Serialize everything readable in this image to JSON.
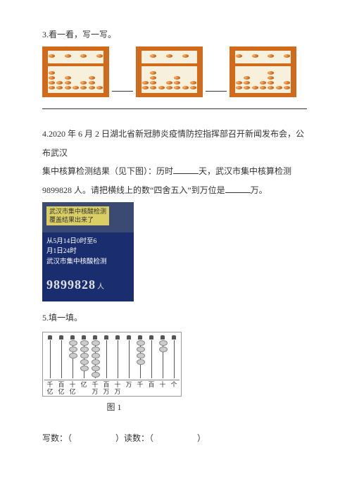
{
  "q3": {
    "title": "3.看一看，写一写。"
  },
  "q4": {
    "text_a": "4.2020 年 6 月 2 日湖北省新冠肺炎疫情防控指挥部召开新闻发布会，公布武汉",
    "text_b": "集中核算检测结果（见下图）：历时",
    "text_c": "天，武汉市集中核算检测",
    "text_d": "9899828 人。请把横线上的数“四舍五入”到万位是",
    "text_e": "万。",
    "photo": {
      "yellow1": "武汉市集中核酸检测",
      "yellow2": "覆盖结果出来了",
      "line1": "从5月14日0时至6",
      "line2": "月1日24时",
      "line3": "武汉市集中核酸检测",
      "number": "9899828",
      "unit": "人"
    }
  },
  "q5": {
    "title": "5.填一填。",
    "labels": [
      "千亿",
      "百亿",
      "十亿",
      "亿",
      "千万",
      "百万",
      "十万",
      "万",
      "千",
      "百",
      "十",
      "个"
    ],
    "beads": [
      0,
      0,
      3,
      5,
      6,
      0,
      0,
      0,
      4,
      0,
      2,
      0
    ],
    "caption": "图 1",
    "write": "写数：（",
    "read": "）读数：（",
    "end": "）"
  }
}
